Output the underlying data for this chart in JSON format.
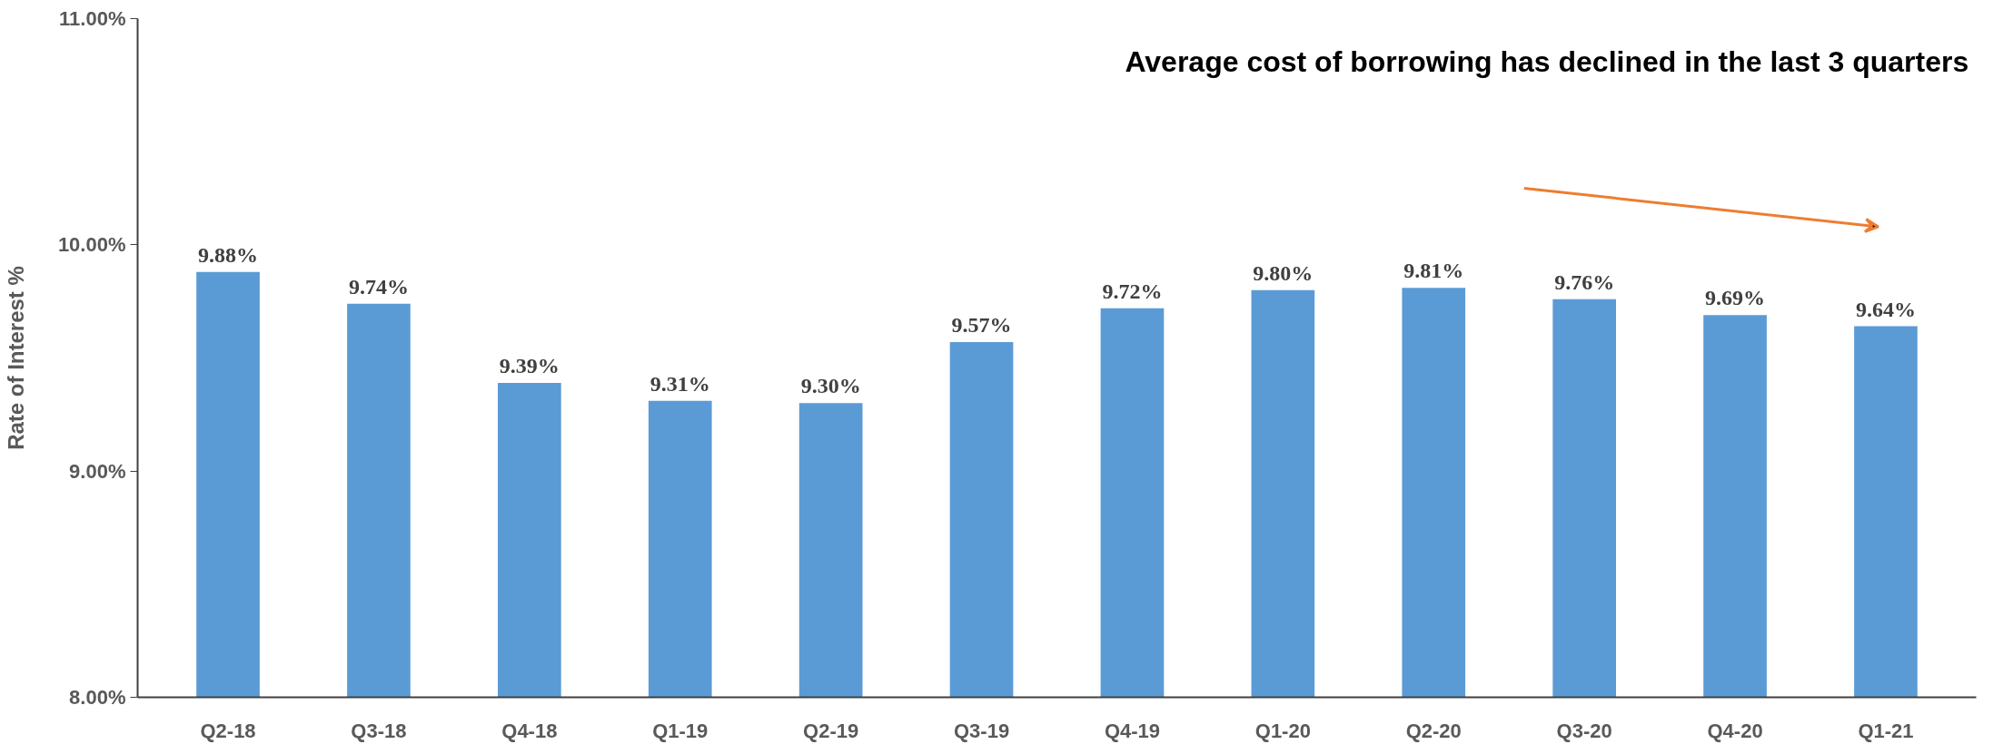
{
  "chart_data": {
    "type": "bar",
    "ylabel": "Rate of Interest %",
    "categories": [
      "Q2-18",
      "Q3-18",
      "Q4-18",
      "Q1-19",
      "Q2-19",
      "Q3-19",
      "Q4-19",
      "Q1-20",
      "Q2-20",
      "Q3-20",
      "Q4-20",
      "Q1-21"
    ],
    "values": [
      9.88,
      9.74,
      9.39,
      9.31,
      9.3,
      9.57,
      9.72,
      9.8,
      9.81,
      9.76,
      9.69,
      9.64
    ],
    "value_labels": [
      "9.88%",
      "9.74%",
      "9.39%",
      "9.31%",
      "9.30%",
      "9.57%",
      "9.72%",
      "9.80%",
      "9.81%",
      "9.76%",
      "9.69%",
      "9.64%"
    ],
    "color": "#5b9bd5",
    "ylim": [
      8,
      11
    ],
    "yticks": [
      {
        "value": 8,
        "label": "8.00%"
      },
      {
        "value": 9,
        "label": "9.00%"
      },
      {
        "value": 10,
        "label": "10.00%"
      },
      {
        "value": 11,
        "label": "11.00%"
      }
    ],
    "grid": false,
    "annotations": [
      "Average cost of borrowing has declined in the last 3 quarters"
    ]
  }
}
